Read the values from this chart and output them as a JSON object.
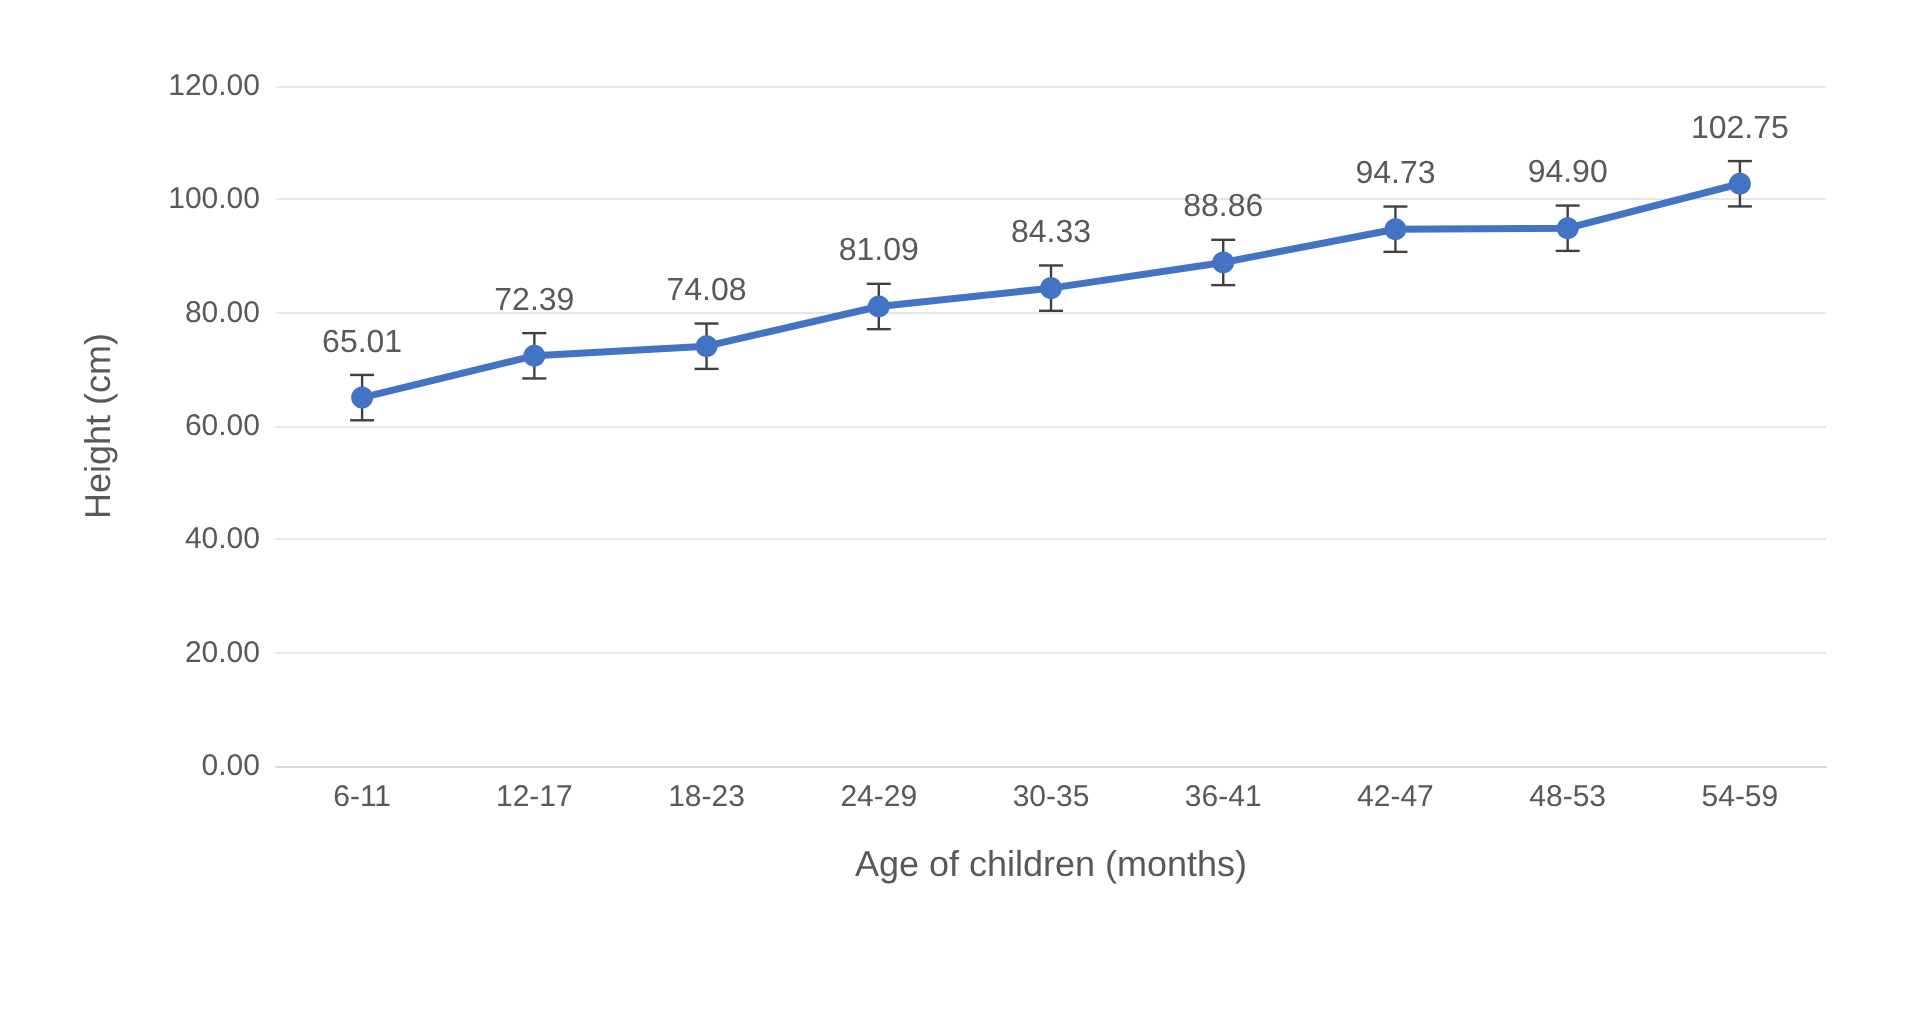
{
  "chart_data": {
    "type": "line",
    "xlabel": "Age of children (months)",
    "ylabel": "Height (cm)",
    "categories": [
      "6-11",
      "12-17",
      "18-23",
      "24-29",
      "30-35",
      "36-41",
      "42-47",
      "48-53",
      "54-59"
    ],
    "series": [
      {
        "color": "#4472c4",
        "values": [
          65.01,
          72.39,
          74.08,
          81.09,
          84.33,
          88.86,
          94.73,
          94.9,
          102.75
        ],
        "value_labels": [
          "65.01",
          "72.39",
          "74.08",
          "81.09",
          "84.33",
          "88.86",
          "94.73",
          "94.90",
          "102.75"
        ],
        "errors": [
          4,
          4,
          4,
          4,
          4,
          4,
          4,
          4,
          4
        ]
      }
    ],
    "ylim": [
      0,
      120
    ],
    "yticks": [
      {
        "value": 0,
        "label": "0.00"
      },
      {
        "value": 20,
        "label": "20.00"
      },
      {
        "value": 40,
        "label": "40.00"
      },
      {
        "value": 60,
        "label": "60.00"
      },
      {
        "value": 80,
        "label": "80.00"
      },
      {
        "value": 100,
        "label": "100.00"
      },
      {
        "value": 120,
        "label": "120.00"
      }
    ],
    "grid": "y",
    "marker": "circle",
    "line_style": "solid"
  }
}
